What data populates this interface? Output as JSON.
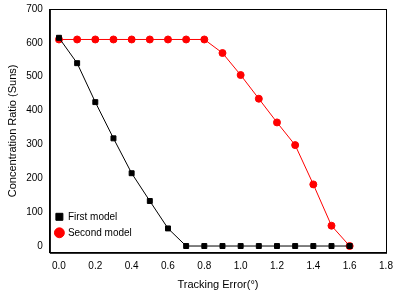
{
  "chart_data": {
    "type": "line",
    "x_label": "Tracking Error(°)",
    "y_label": "Concentration Ratio (Suns)",
    "x": [
      0,
      0.1,
      0.2,
      0.3,
      0.4,
      0.5,
      0.6,
      0.7,
      0.8,
      0.9,
      1.0,
      1.1,
      1.2,
      1.3,
      1.4,
      1.5,
      1.6
    ],
    "series": [
      {
        "name": "First model",
        "color": "#000000",
        "marker": "square",
        "line_style": "solid",
        "values": [
          615,
          540,
          425,
          318,
          215,
          133,
          52,
          0,
          0,
          0,
          0,
          0,
          0,
          0,
          0,
          0,
          0
        ]
      },
      {
        "name": "Second model",
        "color": "#ff0000",
        "marker": "circle",
        "line_style": "solid",
        "values": [
          610,
          610,
          610,
          610,
          610,
          610,
          610,
          610,
          610,
          570,
          505,
          435,
          365,
          298,
          182,
          60,
          0
        ]
      }
    ],
    "xlim": [
      -0.05,
      1.8
    ],
    "xticks": [
      {
        "value": 0,
        "label": "0.0"
      },
      0.2,
      0.4,
      0.6,
      0.8,
      {
        "value": 1,
        "label": "1.0"
      },
      1.2,
      1.4,
      1.6,
      1.8
    ],
    "ylim": [
      -20,
      700
    ],
    "yticks": [
      0,
      100,
      200,
      300,
      400,
      500,
      600,
      700
    ],
    "grid": false,
    "legend": "top right"
  }
}
